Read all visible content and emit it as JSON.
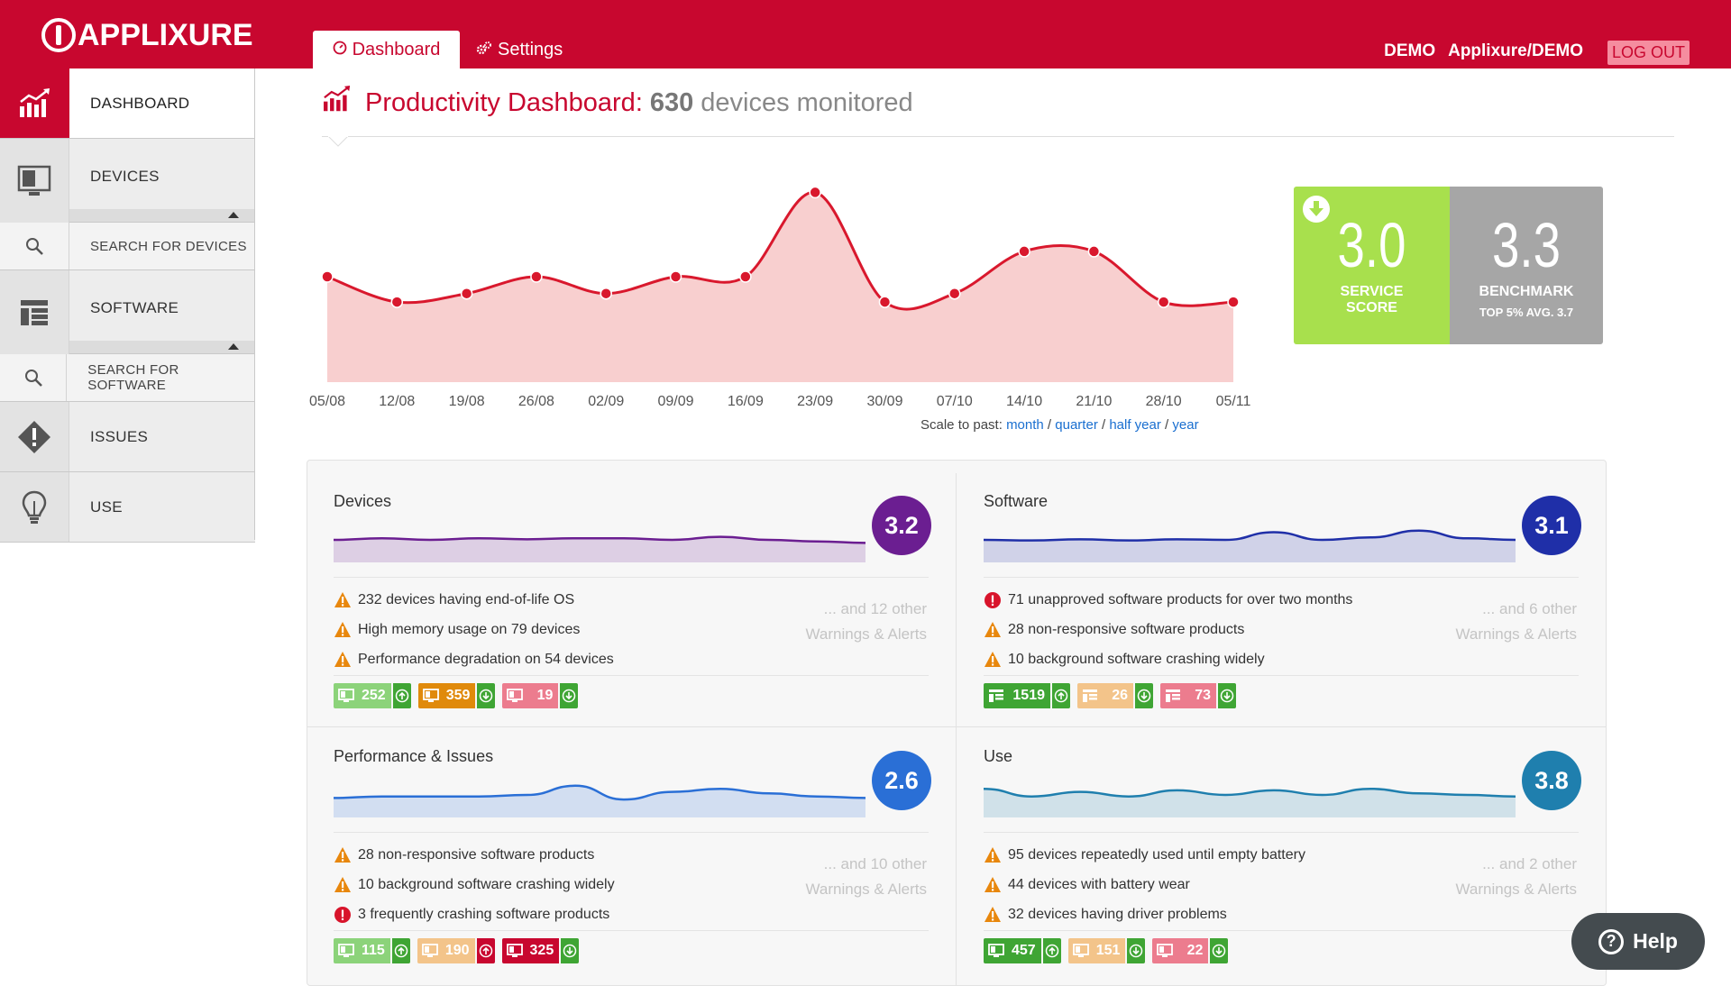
{
  "header": {
    "logo_text": "APPLIXURE",
    "tabs": [
      {
        "label": "Dashboard",
        "active": true
      },
      {
        "label": "Settings",
        "active": false
      }
    ],
    "user_label": "DEMO",
    "org_label": "Applixure/DEMO",
    "logout_label": "LOG OUT",
    "brand_color": "#c8072f"
  },
  "sidebar": {
    "items": [
      {
        "label": "DASHBOARD",
        "icon": "bar-chart-icon",
        "active": true
      },
      {
        "label": "DEVICES",
        "icon": "monitor-icon"
      },
      {
        "label": "SEARCH FOR DEVICES",
        "icon": "search-icon"
      },
      {
        "label": "SOFTWARE",
        "icon": "software-grid-icon"
      },
      {
        "label": "SEARCH FOR SOFTWARE",
        "icon": "search-icon"
      },
      {
        "label": "ISSUES",
        "icon": "warning-diamond-icon"
      },
      {
        "label": "USE",
        "icon": "lightbulb-icon"
      }
    ]
  },
  "title": {
    "prefix": "Productivity Dashboard:",
    "count": "630",
    "suffix": "devices monitored"
  },
  "chart_data": {
    "type": "area",
    "categories": [
      "05/08",
      "12/08",
      "19/08",
      "26/08",
      "02/09",
      "09/09",
      "16/09",
      "23/09",
      "30/09",
      "07/10",
      "14/10",
      "21/10",
      "28/10",
      "05/11"
    ],
    "values": [
      3.25,
      2.95,
      3.05,
      3.25,
      3.05,
      3.25,
      3.25,
      4.25,
      2.95,
      3.05,
      3.55,
      3.55,
      2.95,
      2.95
    ],
    "ylim": [
      2.0,
      4.5
    ],
    "line_color": "#d9182d",
    "fill_color": "#f8cfcf"
  },
  "scale": {
    "prefix": "Scale to past:",
    "options": [
      "month",
      "quarter",
      "half year",
      "year"
    ]
  },
  "scores": {
    "service_score": "3.0",
    "service_label_1": "SERVICE",
    "service_label_2": "SCORE",
    "benchmark": "3.3",
    "benchmark_label": "BENCHMARK",
    "benchmark_sub": "TOP 5% AVG. 3.7"
  },
  "panels": [
    {
      "title": "Devices",
      "score": "3.2",
      "color": "#6b1e91",
      "spark": [
        0.5,
        0.45,
        0.5,
        0.45,
        0.48,
        0.45,
        0.45,
        0.5,
        0.4,
        0.5,
        0.55,
        0.6
      ],
      "alerts": [
        {
          "level": "warning",
          "text": "232 devices having end-of-life OS"
        },
        {
          "level": "warning",
          "text": "High memory usage on 79 devices"
        },
        {
          "level": "warning",
          "text": "Performance degradation on 54 devices"
        }
      ],
      "other_1": "... and 12 other",
      "other_2": "Warnings & Alerts",
      "chips": [
        {
          "value": "252",
          "bg": "#8cd37a",
          "icon": "monitor-icon",
          "dir": "up"
        },
        {
          "value": "359",
          "bg": "#e08a0b",
          "icon": "monitor-icon",
          "dir": "down"
        },
        {
          "value": "19",
          "bg": "#ec7c8e",
          "icon": "monitor-icon",
          "dir": "down"
        }
      ]
    },
    {
      "title": "Software",
      "score": "3.1",
      "color": "#1f2fa8",
      "spark": [
        0.5,
        0.52,
        0.48,
        0.52,
        0.48,
        0.5,
        0.25,
        0.5,
        0.42,
        0.2,
        0.45,
        0.5
      ],
      "alerts": [
        {
          "level": "error",
          "text": "71 unapproved software products for over two months"
        },
        {
          "level": "warning",
          "text": "28 non-responsive software products"
        },
        {
          "level": "warning",
          "text": "10 background software crashing widely"
        }
      ],
      "other_1": "... and 6 other",
      "other_2": "Warnings & Alerts",
      "chips": [
        {
          "value": "1519",
          "bg": "#3fa534",
          "icon": "software-grid-icon",
          "dir": "up"
        },
        {
          "value": "26",
          "bg": "#f3c48a",
          "icon": "software-grid-icon",
          "dir": "down"
        },
        {
          "value": "73",
          "bg": "#ec7c8e",
          "icon": "software-grid-icon",
          "dir": "down"
        }
      ]
    },
    {
      "title": "Performance & Issues",
      "score": "2.6",
      "color": "#2a6fd6",
      "spark": [
        0.6,
        0.55,
        0.55,
        0.55,
        0.5,
        0.2,
        0.65,
        0.4,
        0.3,
        0.45,
        0.55,
        0.6
      ],
      "alerts": [
        {
          "level": "warning",
          "text": "28 non-responsive software products"
        },
        {
          "level": "warning",
          "text": "10 background software crashing widely"
        },
        {
          "level": "error",
          "text": "3 frequently crashing software products"
        }
      ],
      "other_1": "... and 10 other",
      "other_2": "Warnings & Alerts",
      "chips": [
        {
          "value": "115",
          "bg": "#8cd37a",
          "icon": "monitor-icon",
          "dir": "up"
        },
        {
          "value": "190",
          "bg": "#f3c48a",
          "icon": "monitor-icon",
          "dir": "up-red"
        },
        {
          "value": "325",
          "bg": "#c8072f",
          "icon": "monitor-icon",
          "dir": "down"
        }
      ]
    },
    {
      "title": "Use",
      "score": "3.8",
      "color": "#1f7fae",
      "spark": [
        0.3,
        0.55,
        0.4,
        0.55,
        0.35,
        0.5,
        0.35,
        0.5,
        0.3,
        0.45,
        0.5,
        0.55
      ],
      "alerts": [
        {
          "level": "warning",
          "text": "95 devices repeatedly used until empty battery"
        },
        {
          "level": "warning",
          "text": "44 devices with battery wear"
        },
        {
          "level": "warning",
          "text": "32 devices having driver problems"
        }
      ],
      "other_1": "... and 2 other",
      "other_2": "Warnings & Alerts",
      "chips": [
        {
          "value": "457",
          "bg": "#3fa534",
          "icon": "monitor-icon",
          "dir": "up"
        },
        {
          "value": "151",
          "bg": "#f3c48a",
          "icon": "monitor-icon",
          "dir": "down"
        },
        {
          "value": "22",
          "bg": "#ec7c8e",
          "icon": "monitor-icon",
          "dir": "down"
        }
      ]
    }
  ],
  "help": {
    "label": "Help"
  }
}
